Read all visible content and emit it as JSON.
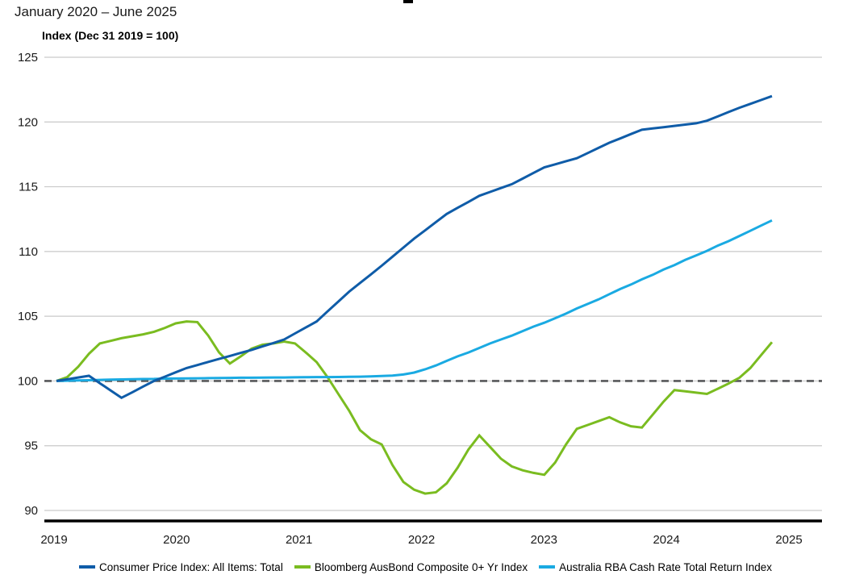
{
  "chart_data": {
    "type": "line",
    "subtitle": "January 2020 – June 2025",
    "ylabel": "Index (Dec 31 2019 = 100)",
    "x_unit": "months since Dec 31 2019, monthly points through Jun 2025",
    "x_tick_labels": [
      "2019",
      "2020",
      "2021",
      "2022",
      "2023",
      "2024",
      "2025"
    ],
    "y_ticks": [
      125,
      120,
      115,
      110,
      105,
      100,
      95,
      90
    ],
    "ylim": [
      90,
      125
    ],
    "grid": true,
    "legend_position": "bottom",
    "reference_line": {
      "value": 100,
      "style": "dashed",
      "color": "#57585A"
    },
    "style": {
      "grid_color": "#C9C9C9",
      "axis_color": "#000000",
      "text_color": "#1A1A1A",
      "background": "#FFFFFF"
    },
    "series": [
      {
        "id": "cpi",
        "name": "Consumer Price Index: All Items: Total",
        "color": "#0F5CA8",
        "values": [
          100,
          100.13,
          100.27,
          100.4,
          99.83,
          99.27,
          98.7,
          99.13,
          99.57,
          100,
          100.33,
          100.67,
          101,
          101.23,
          101.47,
          101.7,
          101.93,
          102.17,
          102.4,
          102.67,
          102.93,
          103.2,
          103.67,
          104.13,
          104.6,
          105.37,
          106.13,
          106.9,
          107.57,
          108.23,
          108.9,
          109.6,
          110.3,
          111,
          111.63,
          112.27,
          112.9,
          113.37,
          113.83,
          114.3,
          114.6,
          114.9,
          115.2,
          115.63,
          116.07,
          116.5,
          116.73,
          116.97,
          117.2,
          117.6,
          118,
          118.4,
          118.73,
          119.07,
          119.4,
          119.5,
          119.6,
          119.7,
          119.8,
          119.9,
          120.1,
          120.43,
          120.77,
          121.1,
          121.4,
          121.7,
          122
        ]
      },
      {
        "id": "ausbond",
        "name": "Bloomberg AusBond Composite 0+ Yr Index",
        "color": "#7ABC20",
        "values": [
          100,
          100.3,
          101.1,
          102.1,
          102.9,
          103.1,
          103.3,
          103.45,
          103.6,
          103.8,
          104.1,
          104.45,
          104.6,
          104.55,
          103.5,
          102.2,
          101.35,
          101.9,
          102.5,
          102.8,
          102.9,
          103.05,
          102.9,
          102.2,
          101.45,
          100.3,
          99,
          97.7,
          96.2,
          95.5,
          95.1,
          93.5,
          92.2,
          91.6,
          91.3,
          91.4,
          92.1,
          93.3,
          94.7,
          95.8,
          94.9,
          94,
          93.4,
          93.1,
          92.9,
          92.75,
          93.7,
          95.1,
          96.3,
          96.6,
          96.9,
          97.2,
          96.8,
          96.5,
          96.4,
          97.4,
          98.4,
          99.3,
          99.2,
          99.1,
          99,
          99.4,
          99.8,
          100.25,
          101,
          102,
          103
        ]
      },
      {
        "id": "rba-cash",
        "name": "Australia RBA Cash Rate Total Return Index",
        "color": "#1AAAE2",
        "values": [
          100,
          100.02,
          100.04,
          100.06,
          100.08,
          100.1,
          100.12,
          100.13,
          100.15,
          100.16,
          100.18,
          100.19,
          100.2,
          100.21,
          100.22,
          100.23,
          100.24,
          100.25,
          100.25,
          100.26,
          100.27,
          100.27,
          100.28,
          100.29,
          100.3,
          100.3,
          100.31,
          100.32,
          100.33,
          100.35,
          100.38,
          100.42,
          100.5,
          100.65,
          100.9,
          101.2,
          101.55,
          101.9,
          102.2,
          102.55,
          102.9,
          103.2,
          103.5,
          103.85,
          104.2,
          104.5,
          104.85,
          105.2,
          105.6,
          105.95,
          106.3,
          106.7,
          107.1,
          107.45,
          107.85,
          108.2,
          108.6,
          108.95,
          109.35,
          109.7,
          110.05,
          110.45,
          110.8,
          111.2,
          111.6,
          112,
          112.4
        ]
      }
    ]
  }
}
